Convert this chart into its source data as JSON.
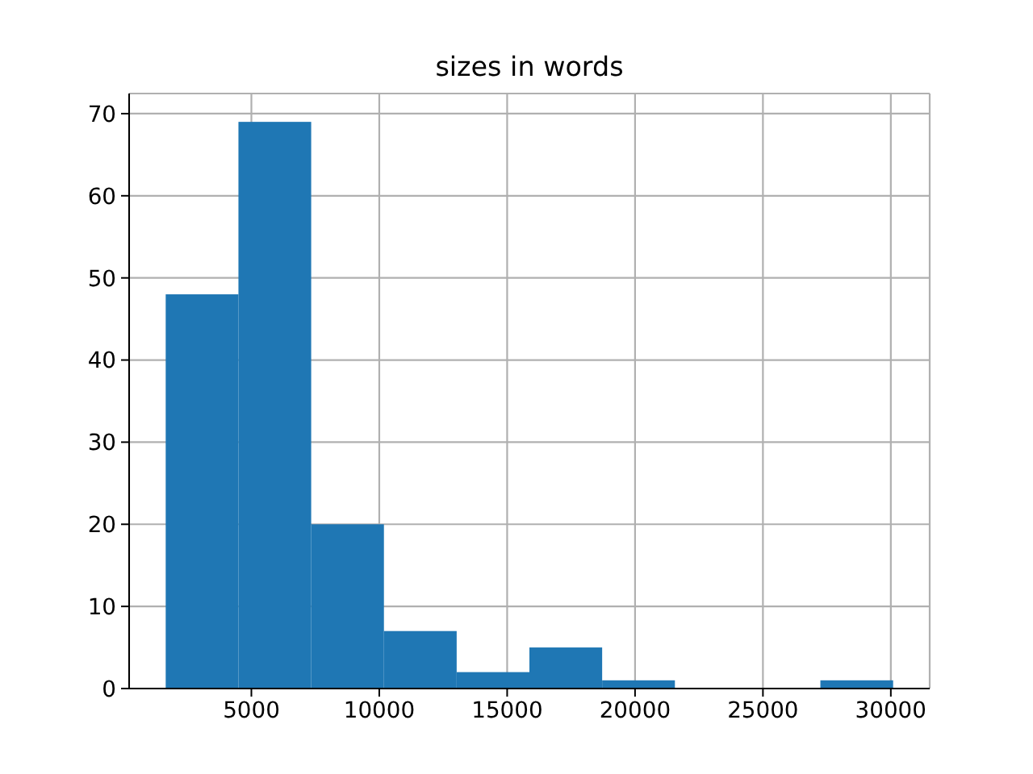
{
  "chart_data": {
    "type": "histogram",
    "title": "sizes in words",
    "bins": [
      1650,
      4494,
      7338,
      10182,
      13026,
      15870,
      18714,
      21558,
      24402,
      27246,
      30090
    ],
    "values": [
      48,
      69,
      20,
      7,
      2,
      5,
      1,
      0,
      0,
      1
    ],
    "color": "#1f77b4",
    "xlim": [
      220,
      31520
    ],
    "ylim": [
      0,
      72.45
    ],
    "xticks": [
      5000,
      10000,
      15000,
      20000,
      25000,
      30000
    ],
    "yticks": [
      0,
      10,
      20,
      30,
      40,
      50,
      60,
      70
    ],
    "grid": true
  }
}
